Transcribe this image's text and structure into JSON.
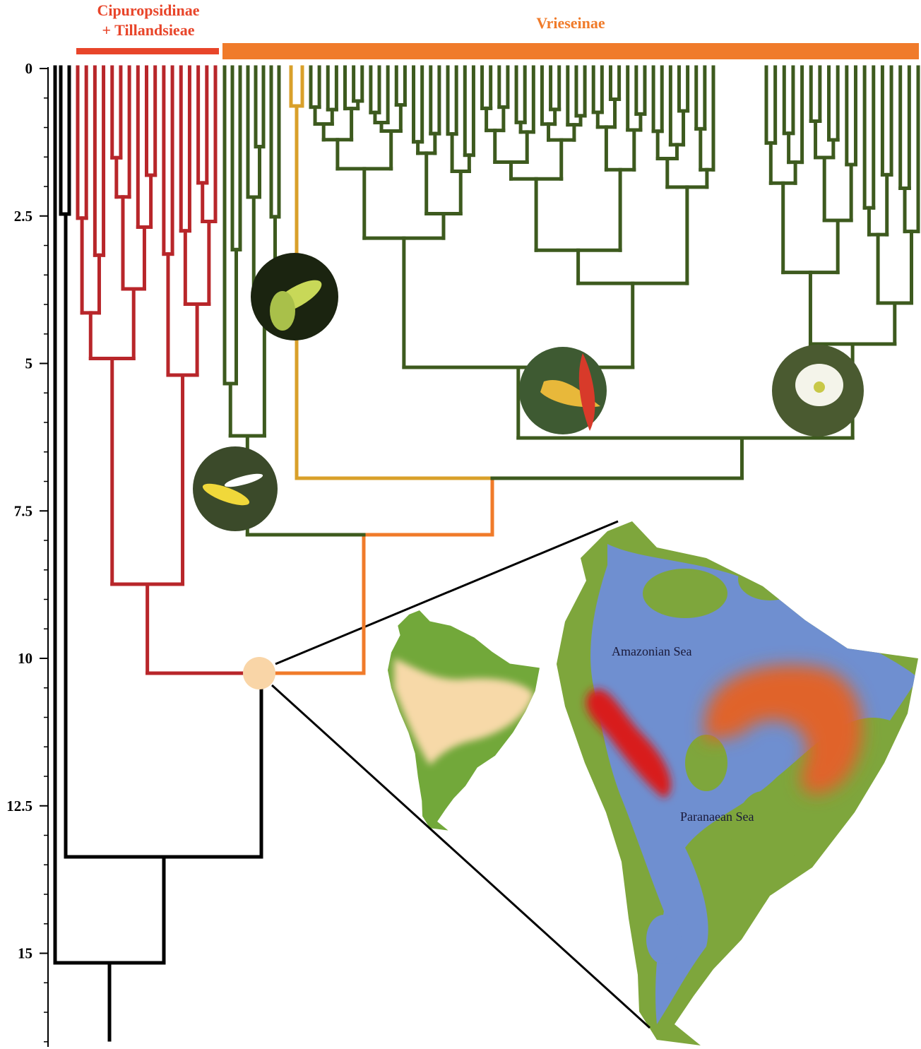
{
  "clade_labels": {
    "left": [
      "Cipuropsidinae",
      "+ Tillandsieae"
    ],
    "right": "Vrieseinae"
  },
  "axis": {
    "ticks": [
      0,
      2.5,
      5,
      7.5,
      10,
      12.5,
      15
    ]
  },
  "map_labels": [
    "Amazonian Sea",
    "Paranaean Sea"
  ]
}
